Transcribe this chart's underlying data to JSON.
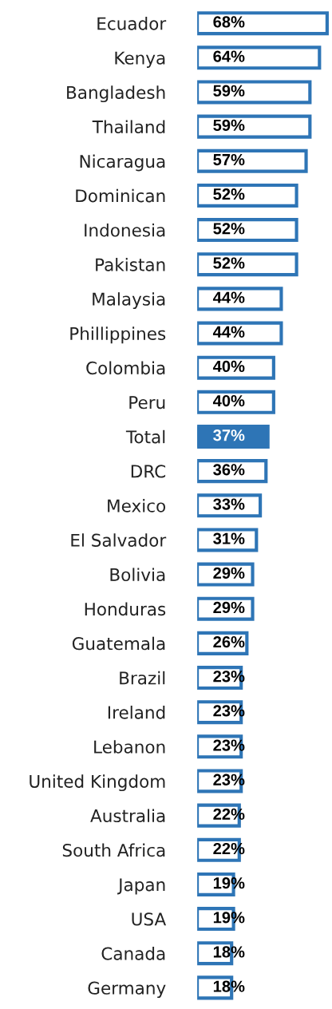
{
  "chart_data": {
    "type": "bar",
    "orientation": "horizontal",
    "categories": [
      "Ecuador",
      "Kenya",
      "Bangladesh",
      "Thailand",
      "Nicaragua",
      "Dominican",
      "Indonesia",
      "Pakistan",
      "Malaysia",
      "Phillippines",
      "Colombia",
      "Peru",
      "Total",
      "DRC",
      "Mexico",
      "El Salvador",
      "Bolivia",
      "Honduras",
      "Guatemala",
      "Brazil",
      "Ireland",
      "Lebanon",
      "United Kingdom",
      "Australia",
      "South Africa",
      "Japan",
      "USA",
      "Canada",
      "Germany"
    ],
    "values": [
      68,
      64,
      59,
      59,
      57,
      52,
      52,
      52,
      44,
      44,
      40,
      40,
      37,
      36,
      33,
      31,
      29,
      29,
      26,
      23,
      23,
      23,
      23,
      22,
      22,
      19,
      19,
      18,
      18
    ],
    "value_labels": [
      "68%",
      "64%",
      "59%",
      "59%",
      "57%",
      "52%",
      "52%",
      "52%",
      "44%",
      "44%",
      "40%",
      "40%",
      "37%",
      "36%",
      "33%",
      "31%",
      "29%",
      "29%",
      "26%",
      "23%",
      "23%",
      "23%",
      "23%",
      "22%",
      "22%",
      "19%",
      "19%",
      "18%",
      "18%"
    ],
    "color": "#2e75b6",
    "colors": [
      "#ffffff",
      "#ffffff",
      "#ffffff",
      "#ffffff",
      "#ffffff",
      "#ffffff",
      "#ffffff",
      "#ffffff",
      "#ffffff",
      "#ffffff",
      "#ffffff",
      "#ffffff",
      "#2e75b6",
      "#ffffff",
      "#ffffff",
      "#ffffff",
      "#ffffff",
      "#ffffff",
      "#ffffff",
      "#ffffff",
      "#ffffff",
      "#ffffff",
      "#ffffff",
      "#ffffff",
      "#ffffff",
      "#ffffff",
      "#ffffff",
      "#ffffff",
      "#ffffff"
    ],
    "grid": false,
    "legend": false,
    "tick_labels": "y"
  }
}
